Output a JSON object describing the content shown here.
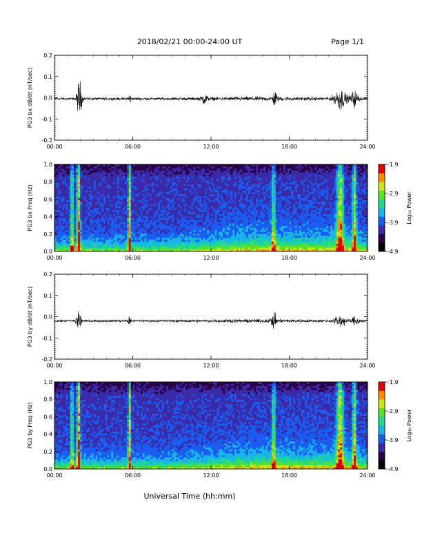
{
  "header": {
    "title": "2018/02/21  00:00-24:00 UT",
    "page": "Page 1/1"
  },
  "footer": {
    "xlabel": "Universal Time (hh:mm)"
  },
  "colors": {
    "background": "#ffffff",
    "trace": "#000000",
    "colormap": [
      "#000000",
      "#2a0048",
      "#3a2aa8",
      "#1b5cf0",
      "#18b4e8",
      "#1fd98c",
      "#58e02a",
      "#c8e81a",
      "#ff8c00",
      "#e00000"
    ]
  },
  "chart_data": [
    {
      "type": "line",
      "ylabel": "PG3 bx dB/dt (nT/sec)",
      "xlim": [
        0,
        24
      ],
      "ylim": [
        -0.2,
        0.2
      ],
      "yticks": [
        {
          "v": 0.2,
          "label": "0.2"
        },
        {
          "v": 0.1,
          "label": "0.1"
        },
        {
          "v": 0.0,
          "label": "0.0"
        },
        {
          "v": -0.1,
          "label": "-0.1"
        },
        {
          "v": -0.2,
          "label": "-0.2"
        }
      ],
      "xticks": [
        {
          "v": 0,
          "label": "00:00"
        },
        {
          "v": 6,
          "label": "06:00"
        },
        {
          "v": 12,
          "label": "12:00"
        },
        {
          "v": 18,
          "label": "18:00"
        },
        {
          "v": 24,
          "label": "24:00"
        }
      ],
      "baseline": -0.005,
      "noise": 0.012,
      "bursts": [
        {
          "t": 1.9,
          "w": 0.18,
          "a": 0.13
        },
        {
          "t": 5.75,
          "w": 0.1,
          "a": 0.04
        },
        {
          "t": 11.5,
          "w": 0.2,
          "a": 0.035
        },
        {
          "t": 16.9,
          "w": 0.15,
          "a": 0.05
        },
        {
          "t": 21.9,
          "w": 0.45,
          "a": 0.07
        },
        {
          "t": 23.0,
          "w": 0.3,
          "a": 0.05
        }
      ]
    },
    {
      "type": "heatmap",
      "ylabel": "PG3 bx Freq (Hz)",
      "xlim": [
        0,
        24
      ],
      "ylim": [
        0,
        1.0
      ],
      "yticks": [
        {
          "v": 1.0,
          "label": "1.0"
        },
        {
          "v": 0.8,
          "label": "0.8"
        },
        {
          "v": 0.6,
          "label": "0.6"
        },
        {
          "v": 0.4,
          "label": "0.4"
        },
        {
          "v": 0.2,
          "label": "0.2"
        },
        {
          "v": 0.0,
          "label": "0.0"
        }
      ],
      "xticks": [
        {
          "v": 0,
          "label": "00:00"
        },
        {
          "v": 6,
          "label": "06:00"
        },
        {
          "v": 12,
          "label": "12:00"
        },
        {
          "v": 18,
          "label": "18:00"
        },
        {
          "v": 24,
          "label": "24:00"
        }
      ],
      "colorbar": {
        "label": "Log₁₀ Power",
        "range": [
          -4.9,
          -1.9
        ],
        "ticks": [
          {
            "v": -1.9,
            "label": "-1.9"
          },
          {
            "v": -2.9,
            "label": "-2.9"
          },
          {
            "v": -3.9,
            "label": "-3.9"
          },
          {
            "v": -4.9,
            "label": "-4.9"
          }
        ]
      },
      "streaks": [
        {
          "t": 1.35,
          "w": 0.1,
          "a": 1.2
        },
        {
          "t": 1.85,
          "w": 0.12,
          "a": 1.6
        },
        {
          "t": 5.75,
          "w": 0.1,
          "a": 1.3
        },
        {
          "t": 16.8,
          "w": 0.12,
          "a": 0.9
        },
        {
          "t": 21.9,
          "w": 0.25,
          "a": 1.3
        },
        {
          "t": 23.0,
          "w": 0.15,
          "a": 1.1
        }
      ]
    },
    {
      "type": "line",
      "ylabel": "PG3 by dB/dt (nT/sec)",
      "xlim": [
        0,
        24
      ],
      "ylim": [
        -0.2,
        0.2
      ],
      "yticks": [
        {
          "v": 0.2,
          "label": "0.2"
        },
        {
          "v": 0.1,
          "label": "0.1"
        },
        {
          "v": 0.0,
          "label": "0.0"
        },
        {
          "v": -0.1,
          "label": "-0.1"
        },
        {
          "v": -0.2,
          "label": "-0.2"
        }
      ],
      "xticks": [
        {
          "v": 0,
          "label": "00:00"
        },
        {
          "v": 6,
          "label": "06:00"
        },
        {
          "v": 12,
          "label": "12:00"
        },
        {
          "v": 18,
          "label": "18:00"
        },
        {
          "v": 24,
          "label": "24:00"
        }
      ],
      "baseline": -0.02,
      "noise": 0.01,
      "bursts": [
        {
          "t": 1.85,
          "w": 0.18,
          "a": 0.08
        },
        {
          "t": 5.75,
          "w": 0.1,
          "a": 0.05
        },
        {
          "t": 16.8,
          "w": 0.2,
          "a": 0.05
        },
        {
          "t": 21.9,
          "w": 0.4,
          "a": 0.04
        },
        {
          "t": 23.1,
          "w": 0.3,
          "a": 0.03
        }
      ]
    },
    {
      "type": "heatmap",
      "ylabel": "PG3 by Freq (Hz)",
      "xlim": [
        0,
        24
      ],
      "ylim": [
        0,
        1.0
      ],
      "yticks": [
        {
          "v": 1.0,
          "label": "1.0"
        },
        {
          "v": 0.8,
          "label": "0.8"
        },
        {
          "v": 0.6,
          "label": "0.6"
        },
        {
          "v": 0.4,
          "label": "0.4"
        },
        {
          "v": 0.2,
          "label": "0.2"
        },
        {
          "v": 0.0,
          "label": "0.0"
        }
      ],
      "xticks": [
        {
          "v": 0,
          "label": "00:00"
        },
        {
          "v": 6,
          "label": "06:00"
        },
        {
          "v": 12,
          "label": "12:00"
        },
        {
          "v": 18,
          "label": "18:00"
        },
        {
          "v": 24,
          "label": "24:00"
        }
      ],
      "colorbar": {
        "label": "Log₁₀ Power",
        "range": [
          -4.9,
          -1.9
        ],
        "ticks": [
          {
            "v": -1.9,
            "label": "-1.9"
          },
          {
            "v": -2.9,
            "label": "-2.9"
          },
          {
            "v": -3.9,
            "label": "-3.9"
          },
          {
            "v": -4.9,
            "label": "-4.9"
          }
        ]
      },
      "streaks": [
        {
          "t": 1.35,
          "w": 0.1,
          "a": 1.1
        },
        {
          "t": 1.85,
          "w": 0.12,
          "a": 1.6
        },
        {
          "t": 5.75,
          "w": 0.1,
          "a": 1.3
        },
        {
          "t": 16.8,
          "w": 0.12,
          "a": 1.0
        },
        {
          "t": 21.9,
          "w": 0.25,
          "a": 1.3
        },
        {
          "t": 23.0,
          "w": 0.15,
          "a": 1.1
        }
      ]
    }
  ]
}
